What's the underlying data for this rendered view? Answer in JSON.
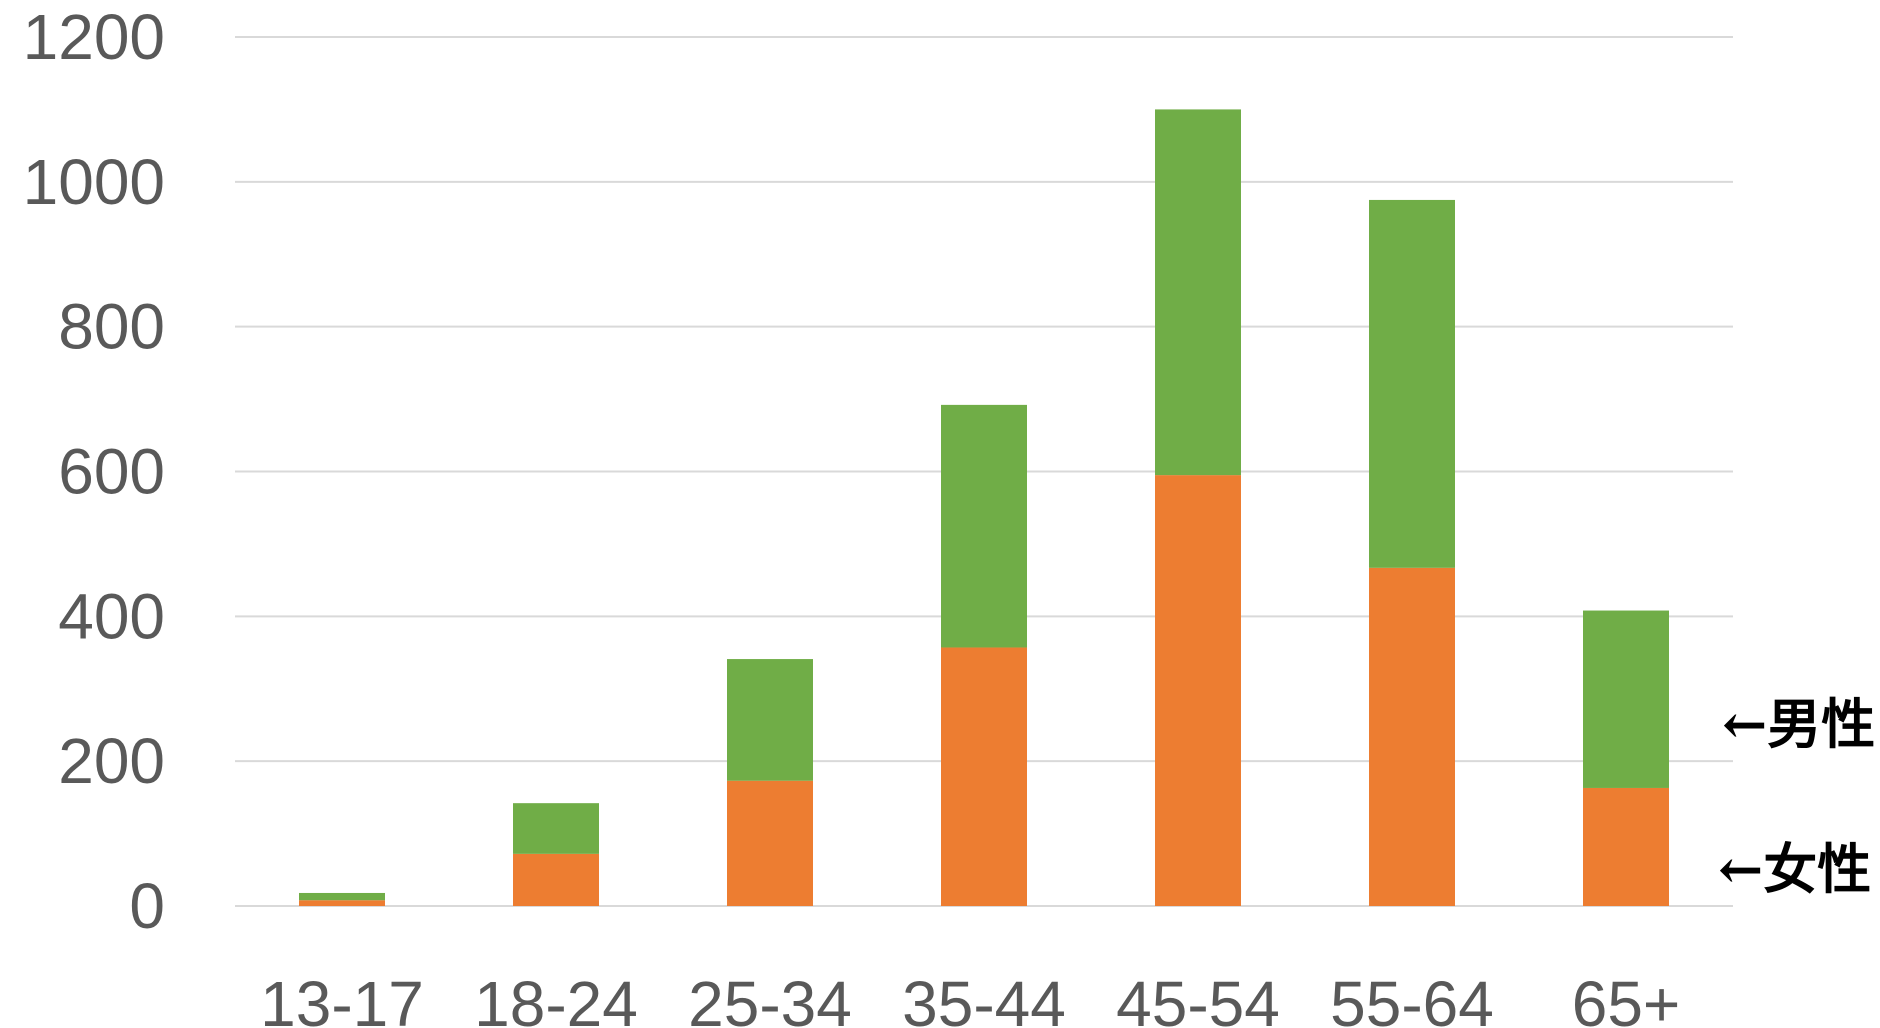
{
  "chart_data": {
    "type": "bar",
    "stacked": true,
    "categories": [
      "13-17",
      "18-24",
      "25-34",
      "35-44",
      "45-54",
      "55-64",
      "65+"
    ],
    "series": [
      {
        "name": "←女性",
        "values": [
          8,
          72,
          173,
          357,
          595,
          467,
          163
        ],
        "color": "#ED7D31"
      },
      {
        "name": "←男性",
        "values": [
          10,
          70,
          168,
          335,
          505,
          508,
          245
        ],
        "color": "#70AD47"
      }
    ],
    "title": "",
    "xlabel": "",
    "ylabel": "",
    "ylim": [
      0,
      1200
    ],
    "yticks": [
      "0",
      "200",
      "400",
      "600",
      "800",
      "1000",
      "1200"
    ],
    "grid": true,
    "legend": "right, beside bars, as arrow labels"
  }
}
